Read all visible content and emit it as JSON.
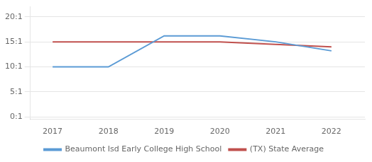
{
  "chart_data": {
    "type": "line",
    "x": [
      2017,
      2018,
      2019,
      2020,
      2021,
      2022
    ],
    "series": [
      {
        "name": "Beaumont Isd Early College High School",
        "color": "#5b9bd5",
        "values": [
          10,
          10,
          16.2,
          16.2,
          15.0,
          13.2
        ]
      },
      {
        "name": "(TX) State Average",
        "color": "#c0504d",
        "values": [
          15.0,
          15.0,
          15.0,
          15.0,
          14.5,
          14.0
        ]
      }
    ],
    "xlim": [
      2016.6,
      2022.6
    ],
    "xticks": [
      2017,
      2018,
      2019,
      2020,
      2021,
      2022
    ],
    "ylim": [
      -0.5,
      22
    ],
    "yticks": [
      {
        "value": 0,
        "label": "0:1"
      },
      {
        "value": 5,
        "label": "5:1"
      },
      {
        "value": 10,
        "label": "10:1"
      },
      {
        "value": 15,
        "label": "15:1"
      },
      {
        "value": 20,
        "label": "20:1"
      }
    ],
    "grid": "y",
    "legend": "bottom"
  }
}
